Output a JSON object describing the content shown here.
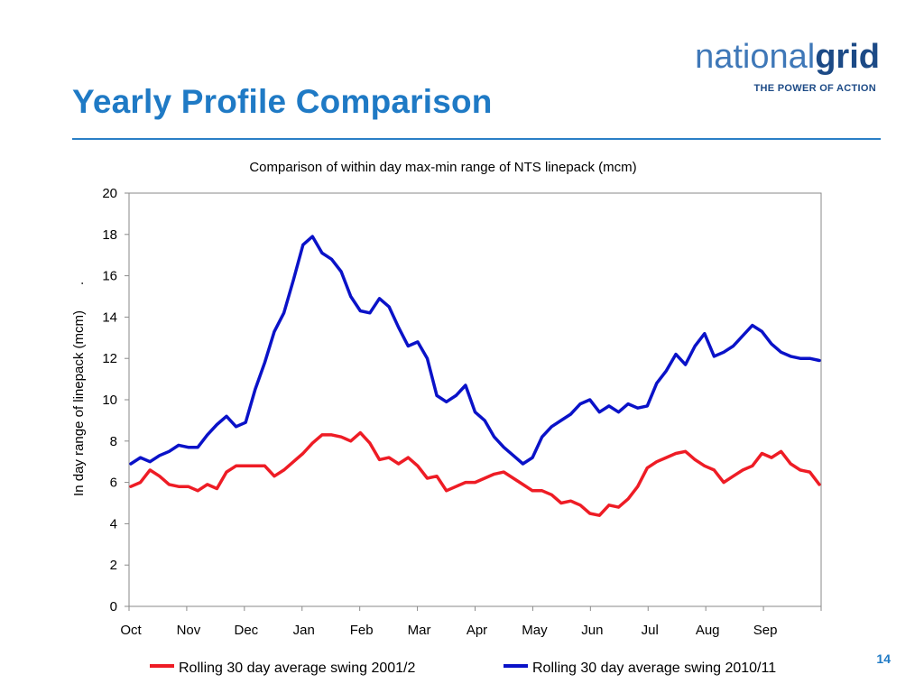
{
  "slide": {
    "title": "Yearly Profile Comparison",
    "page_number": "14"
  },
  "logo": {
    "word_light": "national",
    "word_bold": "grid",
    "tagline": "THE POWER OF ACTION",
    "colors": {
      "light": "#3f78b8",
      "dark": "#1c4a86"
    }
  },
  "colors": {
    "accent": "#1f7ac5"
  },
  "chart_data": {
    "type": "line",
    "title": "Comparison of within day max-min range of NTS linepack (mcm)",
    "ylabel": "In day range of linepack (mcm)",
    "ylabel_suffix": ".",
    "xlabel": "",
    "ylim": [
      0,
      20
    ],
    "yticks": [
      0,
      2,
      4,
      6,
      8,
      10,
      12,
      14,
      16,
      18,
      20
    ],
    "x_tick_labels": [
      "Oct",
      "Nov",
      "Dec",
      "Jan",
      "Feb",
      "Mar",
      "Apr",
      "May",
      "Jun",
      "Jul",
      "Aug",
      "Sep"
    ],
    "grid": false,
    "legend_position": "bottom",
    "series": [
      {
        "name": "Rolling 30 day average swing 2001/2",
        "color": "#ee1c25",
        "points": [
          [
            "Oct",
            5.8
          ],
          [
            "Oct",
            6.0
          ],
          [
            "Oct",
            6.6
          ],
          [
            "Oct",
            6.3
          ],
          [
            "Oct",
            5.9
          ],
          [
            "Oct",
            5.8
          ],
          [
            "Nov",
            5.8
          ],
          [
            "Nov",
            5.6
          ],
          [
            "Nov",
            5.9
          ],
          [
            "Nov",
            5.7
          ],
          [
            "Nov",
            6.5
          ],
          [
            "Nov",
            6.8
          ],
          [
            "Dec",
            6.8
          ],
          [
            "Dec",
            6.8
          ],
          [
            "Dec",
            6.8
          ],
          [
            "Dec",
            6.3
          ],
          [
            "Dec",
            6.6
          ],
          [
            "Dec",
            7.0
          ],
          [
            "Jan",
            7.4
          ],
          [
            "Jan",
            7.9
          ],
          [
            "Jan",
            8.3
          ],
          [
            "Jan",
            8.3
          ],
          [
            "Jan",
            8.2
          ],
          [
            "Jan",
            8.0
          ],
          [
            "Feb",
            8.4
          ],
          [
            "Feb",
            7.9
          ],
          [
            "Feb",
            7.1
          ],
          [
            "Feb",
            7.2
          ],
          [
            "Feb",
            6.9
          ],
          [
            "Feb",
            7.2
          ],
          [
            "Mar",
            6.8
          ],
          [
            "Mar",
            6.2
          ],
          [
            "Mar",
            6.3
          ],
          [
            "Mar",
            5.6
          ],
          [
            "Mar",
            5.8
          ],
          [
            "Mar",
            6.0
          ],
          [
            "Apr",
            6.0
          ],
          [
            "Apr",
            6.2
          ],
          [
            "Apr",
            6.4
          ],
          [
            "Apr",
            6.5
          ],
          [
            "Apr",
            6.2
          ],
          [
            "Apr",
            5.9
          ],
          [
            "May",
            5.6
          ],
          [
            "May",
            5.6
          ],
          [
            "May",
            5.4
          ],
          [
            "May",
            5.0
          ],
          [
            "May",
            5.1
          ],
          [
            "May",
            4.9
          ],
          [
            "Jun",
            4.5
          ],
          [
            "Jun",
            4.4
          ],
          [
            "Jun",
            4.9
          ],
          [
            "Jun",
            4.8
          ],
          [
            "Jun",
            5.2
          ],
          [
            "Jun",
            5.8
          ],
          [
            "Jul",
            6.7
          ],
          [
            "Jul",
            7.0
          ],
          [
            "Jul",
            7.2
          ],
          [
            "Jul",
            7.4
          ],
          [
            "Jul",
            7.5
          ],
          [
            "Jul",
            7.1
          ],
          [
            "Aug",
            6.8
          ],
          [
            "Aug",
            6.6
          ],
          [
            "Aug",
            6.0
          ],
          [
            "Aug",
            6.3
          ],
          [
            "Aug",
            6.6
          ],
          [
            "Aug",
            6.8
          ],
          [
            "Sep",
            7.4
          ],
          [
            "Sep",
            7.2
          ],
          [
            "Sep",
            7.5
          ],
          [
            "Sep",
            6.9
          ],
          [
            "Sep",
            6.6
          ],
          [
            "Sep",
            6.5
          ],
          [
            "Sep",
            5.9
          ]
        ]
      },
      {
        "name": "Rolling 30 day average swing 2010/11",
        "color": "#0a12c8",
        "points": [
          [
            "Oct",
            6.9
          ],
          [
            "Oct",
            7.2
          ],
          [
            "Oct",
            7.0
          ],
          [
            "Oct",
            7.3
          ],
          [
            "Oct",
            7.5
          ],
          [
            "Oct",
            7.8
          ],
          [
            "Nov",
            7.7
          ],
          [
            "Nov",
            7.7
          ],
          [
            "Nov",
            8.3
          ],
          [
            "Nov",
            8.8
          ],
          [
            "Nov",
            9.2
          ],
          [
            "Nov",
            8.7
          ],
          [
            "Dec",
            8.9
          ],
          [
            "Dec",
            10.5
          ],
          [
            "Dec",
            11.8
          ],
          [
            "Dec",
            13.3
          ],
          [
            "Dec",
            14.2
          ],
          [
            "Dec",
            15.8
          ],
          [
            "Jan",
            17.5
          ],
          [
            "Jan",
            17.9
          ],
          [
            "Jan",
            17.1
          ],
          [
            "Jan",
            16.8
          ],
          [
            "Jan",
            16.2
          ],
          [
            "Jan",
            15.0
          ],
          [
            "Feb",
            14.3
          ],
          [
            "Feb",
            14.2
          ],
          [
            "Feb",
            14.9
          ],
          [
            "Feb",
            14.5
          ],
          [
            "Feb",
            13.5
          ],
          [
            "Feb",
            12.6
          ],
          [
            "Mar",
            12.8
          ],
          [
            "Mar",
            12.0
          ],
          [
            "Mar",
            10.2
          ],
          [
            "Mar",
            9.9
          ],
          [
            "Mar",
            10.2
          ],
          [
            "Mar",
            10.7
          ],
          [
            "Apr",
            9.4
          ],
          [
            "Apr",
            9.0
          ],
          [
            "Apr",
            8.2
          ],
          [
            "Apr",
            7.7
          ],
          [
            "Apr",
            7.3
          ],
          [
            "Apr",
            6.9
          ],
          [
            "May",
            7.2
          ],
          [
            "May",
            8.2
          ],
          [
            "May",
            8.7
          ],
          [
            "May",
            9.0
          ],
          [
            "May",
            9.3
          ],
          [
            "May",
            9.8
          ],
          [
            "Jun",
            10.0
          ],
          [
            "Jun",
            9.4
          ],
          [
            "Jun",
            9.7
          ],
          [
            "Jun",
            9.4
          ],
          [
            "Jun",
            9.8
          ],
          [
            "Jun",
            9.6
          ],
          [
            "Jul",
            9.7
          ],
          [
            "Jul",
            10.8
          ],
          [
            "Jul",
            11.4
          ],
          [
            "Jul",
            12.2
          ],
          [
            "Jul",
            11.7
          ],
          [
            "Jul",
            12.6
          ],
          [
            "Aug",
            13.2
          ],
          [
            "Aug",
            12.1
          ],
          [
            "Aug",
            12.3
          ],
          [
            "Aug",
            12.6
          ],
          [
            "Aug",
            13.1
          ],
          [
            "Aug",
            13.6
          ],
          [
            "Sep",
            13.3
          ],
          [
            "Sep",
            12.7
          ],
          [
            "Sep",
            12.3
          ],
          [
            "Sep",
            12.1
          ],
          [
            "Sep",
            12.0
          ],
          [
            "Sep",
            12.0
          ],
          [
            "Sep",
            11.9
          ]
        ]
      }
    ]
  }
}
